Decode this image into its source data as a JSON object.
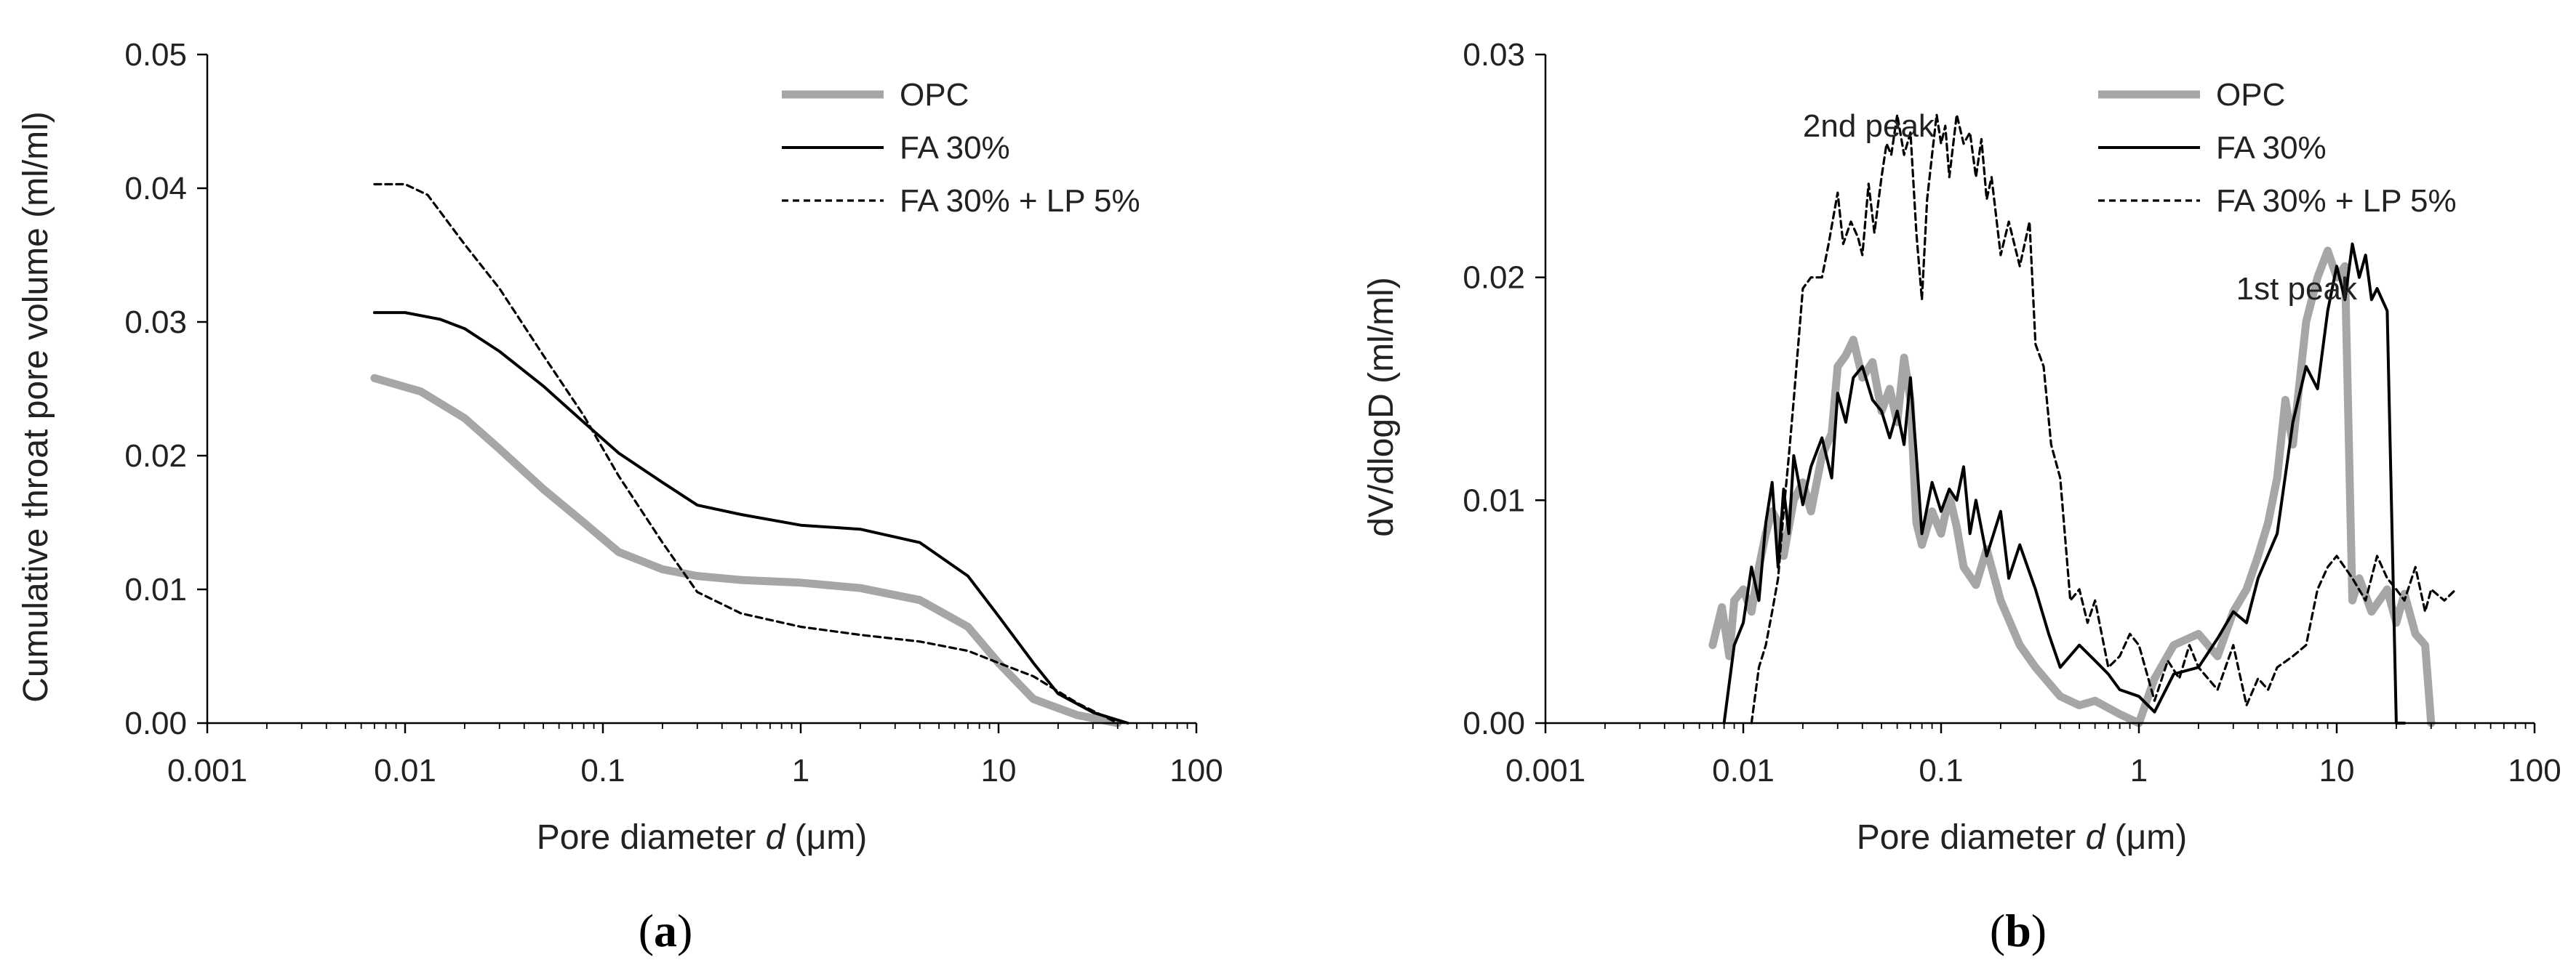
{
  "chart_data": [
    {
      "type": "line",
      "panel": "(a)",
      "panel_mark": "a",
      "xlabel": "Pore diameter",
      "xlabel_var": "d",
      "xlabel_unit": "(μm)",
      "ylabel": "Cumulative throat pore volume (ml/ml)",
      "xscale": "log",
      "xlim": [
        0.001,
        100
      ],
      "ylim": [
        0,
        0.05
      ],
      "xticks": [
        "0.001",
        "0.01",
        "0.1",
        "1",
        "10",
        "100"
      ],
      "yticks": [
        "0.00",
        "0.01",
        "0.02",
        "0.03",
        "0.04",
        "0.05"
      ],
      "legend_position": "top-right",
      "series": [
        {
          "name": "OPC",
          "color": "#a6a6a6",
          "style": "thick",
          "x": [
            0.007,
            0.012,
            0.02,
            0.03,
            0.05,
            0.08,
            0.12,
            0.2,
            0.3,
            0.5,
            1,
            2,
            4,
            7,
            10,
            15,
            25,
            40
          ],
          "y": [
            0.0258,
            0.0248,
            0.0228,
            0.0205,
            0.0175,
            0.015,
            0.0128,
            0.0115,
            0.011,
            0.0107,
            0.0105,
            0.0101,
            0.0092,
            0.0072,
            0.0045,
            0.0018,
            0.0006,
            0.0
          ]
        },
        {
          "name": "FA 30%",
          "color": "#000000",
          "style": "solid",
          "x": [
            0.007,
            0.01,
            0.015,
            0.02,
            0.03,
            0.05,
            0.08,
            0.12,
            0.2,
            0.3,
            0.5,
            1,
            2,
            4,
            7,
            10,
            15,
            20,
            30,
            45
          ],
          "y": [
            0.0307,
            0.0307,
            0.0302,
            0.0295,
            0.0278,
            0.0252,
            0.0225,
            0.0202,
            0.018,
            0.0163,
            0.0156,
            0.0148,
            0.0145,
            0.0135,
            0.011,
            0.008,
            0.0045,
            0.0022,
            0.0008,
            0.0
          ]
        },
        {
          "name": "FA 30% + LP 5%",
          "color": "#000000",
          "style": "dashed",
          "x": [
            0.007,
            0.01,
            0.013,
            0.02,
            0.03,
            0.05,
            0.08,
            0.12,
            0.2,
            0.3,
            0.5,
            1,
            2,
            4,
            7,
            10,
            15,
            25,
            40
          ],
          "y": [
            0.0403,
            0.0403,
            0.0395,
            0.0358,
            0.0325,
            0.0275,
            0.023,
            0.0185,
            0.0135,
            0.0098,
            0.0082,
            0.0072,
            0.0066,
            0.0061,
            0.0054,
            0.0045,
            0.0035,
            0.0015,
            0.0
          ]
        }
      ]
    },
    {
      "type": "line",
      "panel": "(b)",
      "panel_mark": "b",
      "xlabel": "Pore diameter",
      "xlabel_var": "d",
      "xlabel_unit": "(μm)",
      "ylabel": "dV/dlogD (ml/ml)",
      "xscale": "log",
      "xlim": [
        0.001,
        100
      ],
      "ylim": [
        0,
        0.03
      ],
      "xticks": [
        "0.001",
        "0.01",
        "0.1",
        "1",
        "10",
        "100"
      ],
      "yticks": [
        "0.00",
        "0.01",
        "0.02",
        "0.03"
      ],
      "legend_position": "top-center",
      "annotations": [
        {
          "text": "2nd peak",
          "x": 0.02,
          "y": 0.0268
        },
        {
          "text": "1st peak",
          "x": 3.1,
          "y": 0.0195
        }
      ],
      "series": [
        {
          "name": "OPC",
          "color": "#a6a6a6",
          "style": "thick",
          "x": [
            0.007,
            0.0078,
            0.0085,
            0.009,
            0.01,
            0.011,
            0.012,
            0.013,
            0.014,
            0.015,
            0.016,
            0.018,
            0.02,
            0.022,
            0.025,
            0.028,
            0.03,
            0.033,
            0.036,
            0.04,
            0.045,
            0.05,
            0.055,
            0.06,
            0.065,
            0.07,
            0.075,
            0.08,
            0.09,
            0.1,
            0.11,
            0.12,
            0.13,
            0.15,
            0.17,
            0.2,
            0.25,
            0.3,
            0.4,
            0.5,
            0.6,
            0.8,
            1.0,
            1.2,
            1.5,
            2.0,
            2.5,
            3.0,
            3.5,
            4.0,
            4.5,
            5.0,
            5.5,
            6.0,
            7.0,
            8.0,
            9.0,
            10.0,
            11.0,
            12.0,
            13.0,
            15.0,
            18.0,
            20.0,
            22.0,
            25.0,
            28.0,
            30.0
          ],
          "y": [
            0.0035,
            0.0052,
            0.003,
            0.0055,
            0.006,
            0.005,
            0.007,
            0.0085,
            0.0095,
            0.009,
            0.0075,
            0.01,
            0.0108,
            0.0095,
            0.012,
            0.013,
            0.016,
            0.0165,
            0.0172,
            0.0155,
            0.0162,
            0.014,
            0.015,
            0.0135,
            0.0164,
            0.0145,
            0.009,
            0.008,
            0.0095,
            0.0085,
            0.0102,
            0.0088,
            0.007,
            0.0062,
            0.0078,
            0.0055,
            0.0035,
            0.0025,
            0.0012,
            0.0008,
            0.001,
            0.0004,
            0.0,
            0.002,
            0.0035,
            0.004,
            0.003,
            0.005,
            0.006,
            0.0075,
            0.009,
            0.011,
            0.0145,
            0.0125,
            0.018,
            0.02,
            0.0212,
            0.02,
            0.0205,
            0.0055,
            0.0065,
            0.005,
            0.006,
            0.0045,
            0.0058,
            0.004,
            0.0035,
            0.0
          ]
        },
        {
          "name": "FA 30%",
          "color": "#000000",
          "style": "solid",
          "x": [
            0.008,
            0.009,
            0.01,
            0.011,
            0.012,
            0.013,
            0.014,
            0.015,
            0.016,
            0.017,
            0.018,
            0.02,
            0.022,
            0.025,
            0.028,
            0.03,
            0.033,
            0.036,
            0.04,
            0.045,
            0.05,
            0.055,
            0.06,
            0.065,
            0.07,
            0.075,
            0.08,
            0.09,
            0.1,
            0.11,
            0.12,
            0.13,
            0.14,
            0.15,
            0.17,
            0.2,
            0.22,
            0.25,
            0.3,
            0.35,
            0.4,
            0.5,
            0.6,
            0.7,
            0.8,
            1.0,
            1.2,
            1.5,
            2.0,
            2.5,
            3.0,
            3.5,
            4.0,
            5.0,
            6.0,
            7.0,
            8.0,
            9.0,
            10.0,
            11.0,
            12.0,
            13.0,
            14.0,
            15.0,
            16.0,
            18.0,
            20.0,
            22.0
          ],
          "y": [
            0.0,
            0.0035,
            0.0045,
            0.007,
            0.0055,
            0.009,
            0.0108,
            0.007,
            0.0105,
            0.0085,
            0.012,
            0.0098,
            0.0115,
            0.0128,
            0.011,
            0.0148,
            0.0135,
            0.0155,
            0.016,
            0.0145,
            0.014,
            0.0128,
            0.014,
            0.0125,
            0.0155,
            0.012,
            0.0085,
            0.0108,
            0.0095,
            0.0105,
            0.01,
            0.0115,
            0.0085,
            0.01,
            0.0075,
            0.0095,
            0.0065,
            0.008,
            0.006,
            0.004,
            0.0025,
            0.0035,
            0.0028,
            0.0022,
            0.0015,
            0.0012,
            0.0005,
            0.0022,
            0.0025,
            0.0038,
            0.005,
            0.0045,
            0.0065,
            0.0085,
            0.0135,
            0.016,
            0.015,
            0.0185,
            0.0205,
            0.019,
            0.0215,
            0.02,
            0.021,
            0.019,
            0.0195,
            0.0185,
            0.0,
            0.0
          ]
        },
        {
          "name": "FA 30% + LP 5%",
          "color": "#000000",
          "style": "dashed",
          "x": [
            0.011,
            0.012,
            0.013,
            0.014,
            0.015,
            0.016,
            0.017,
            0.018,
            0.02,
            0.022,
            0.025,
            0.027,
            0.03,
            0.032,
            0.035,
            0.038,
            0.04,
            0.043,
            0.046,
            0.05,
            0.053,
            0.056,
            0.06,
            0.065,
            0.07,
            0.075,
            0.08,
            0.085,
            0.09,
            0.095,
            0.1,
            0.105,
            0.11,
            0.12,
            0.13,
            0.14,
            0.15,
            0.16,
            0.17,
            0.18,
            0.2,
            0.22,
            0.25,
            0.28,
            0.3,
            0.33,
            0.36,
            0.4,
            0.45,
            0.5,
            0.55,
            0.6,
            0.7,
            0.8,
            0.9,
            1.0,
            1.2,
            1.4,
            1.6,
            1.8,
            2.0,
            2.5,
            3.0,
            3.5,
            4.0,
            4.5,
            5.0,
            6.0,
            7.0,
            8.0,
            9.0,
            10.0,
            12.0,
            14.0,
            16.0,
            18.0,
            20.0,
            22.0,
            25.0,
            28.0,
            30.0,
            35.0,
            40.0
          ],
          "y": [
            0.0,
            0.0025,
            0.0035,
            0.005,
            0.0065,
            0.0095,
            0.012,
            0.0145,
            0.0195,
            0.02,
            0.02,
            0.0215,
            0.0238,
            0.0215,
            0.0225,
            0.0218,
            0.021,
            0.0242,
            0.022,
            0.0245,
            0.026,
            0.0255,
            0.0273,
            0.0255,
            0.0265,
            0.022,
            0.019,
            0.0235,
            0.0255,
            0.0273,
            0.026,
            0.0268,
            0.0245,
            0.0273,
            0.026,
            0.0265,
            0.0245,
            0.0262,
            0.0235,
            0.0245,
            0.021,
            0.0225,
            0.0205,
            0.0225,
            0.017,
            0.016,
            0.0125,
            0.011,
            0.0055,
            0.006,
            0.0045,
            0.0055,
            0.0025,
            0.003,
            0.004,
            0.0035,
            0.001,
            0.0028,
            0.002,
            0.0035,
            0.0025,
            0.0015,
            0.0035,
            0.0008,
            0.002,
            0.0015,
            0.0025,
            0.003,
            0.0035,
            0.006,
            0.007,
            0.0075,
            0.0065,
            0.0055,
            0.0075,
            0.0065,
            0.006,
            0.0055,
            0.007,
            0.005,
            0.006,
            0.0055,
            0.006
          ]
        }
      ]
    }
  ]
}
